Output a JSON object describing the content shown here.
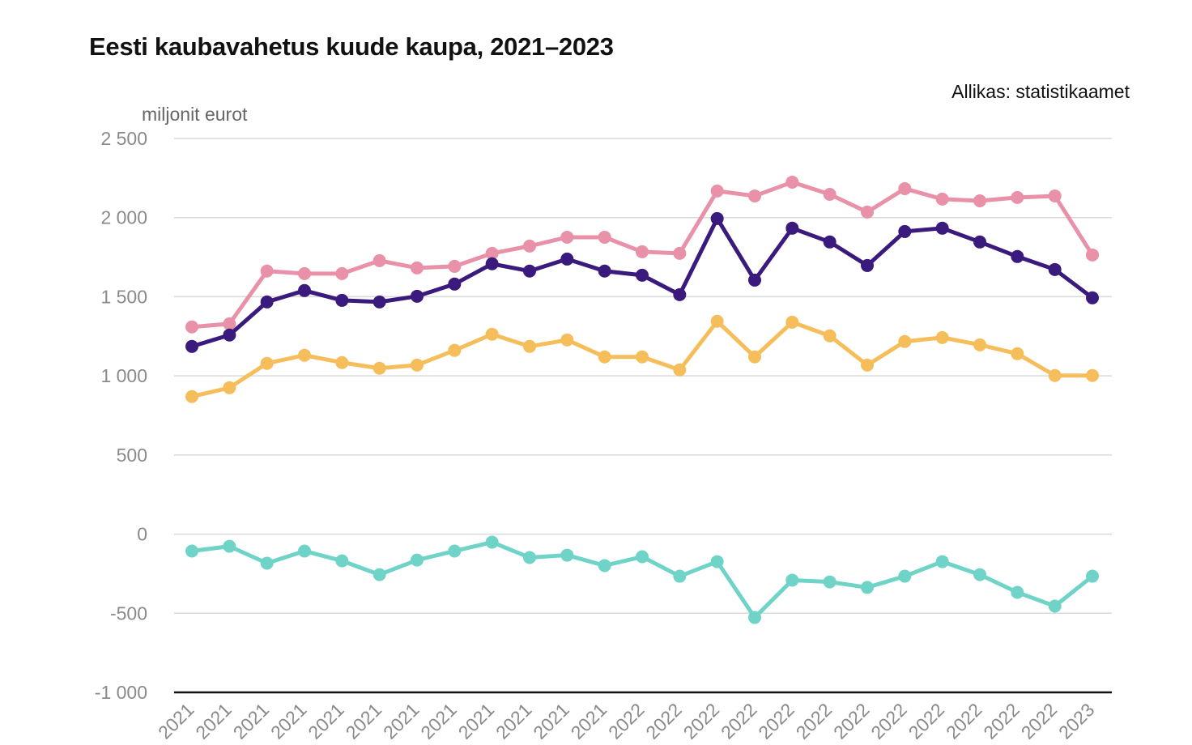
{
  "chart_data": {
    "type": "line",
    "title": "Eesti kaubavahetus kuude kaupa, 2021–2023",
    "source": "Allikas: statistikaamet",
    "ylabel": "miljonit eurot",
    "xlabel": "",
    "ylim": [
      -1000,
      2500
    ],
    "yticks": [
      2500,
      2000,
      1500,
      1000,
      500,
      0,
      -500,
      -1000
    ],
    "ytick_labels": [
      "2 500",
      "2 000",
      "1 500",
      "1 000",
      "500",
      "0",
      "-500",
      "-1 000"
    ],
    "grid": true,
    "legend": "none",
    "categories": [
      "2021",
      "2021",
      "2021",
      "2021",
      "2021",
      "2021",
      "2021",
      "2021",
      "2021",
      "2021",
      "2021",
      "2021",
      "2022",
      "2022",
      "2022",
      "2022",
      "2022",
      "2022",
      "2022",
      "2022",
      "2022",
      "2022",
      "2022",
      "2022",
      "2023"
    ],
    "series": [
      {
        "color": "#e891a8",
        "values": [
          1309,
          1329,
          1662,
          1646,
          1646,
          1728,
          1682,
          1692,
          1774,
          1820,
          1876,
          1876,
          1784,
          1774,
          2168,
          2137,
          2224,
          2147,
          2035,
          2183,
          2117,
          2106,
          2127,
          2137,
          1764
        ]
      },
      {
        "color": "#3a1a7c",
        "values": [
          1186,
          1258,
          1467,
          1539,
          1477,
          1467,
          1503,
          1580,
          1708,
          1662,
          1738,
          1662,
          1636,
          1513,
          1994,
          1605,
          1933,
          1846,
          1697,
          1912,
          1933,
          1846,
          1754,
          1672,
          1493
        ]
      },
      {
        "color": "#f5be5b",
        "values": [
          869,
          925,
          1079,
          1130,
          1084,
          1048,
          1068,
          1161,
          1263,
          1186,
          1227,
          1120,
          1120,
          1038,
          1345,
          1120,
          1339,
          1253,
          1068,
          1217,
          1242,
          1196,
          1140,
          1002,
          1002
        ]
      },
      {
        "color": "#6fd4c7",
        "values": [
          -107,
          -77,
          -184,
          -107,
          -169,
          -256,
          -164,
          -107,
          -51,
          -148,
          -133,
          -199,
          -143,
          -266,
          -174,
          -527,
          -291,
          -302,
          -337,
          -266,
          -174,
          -256,
          -368,
          -455,
          -266
        ]
      }
    ]
  }
}
